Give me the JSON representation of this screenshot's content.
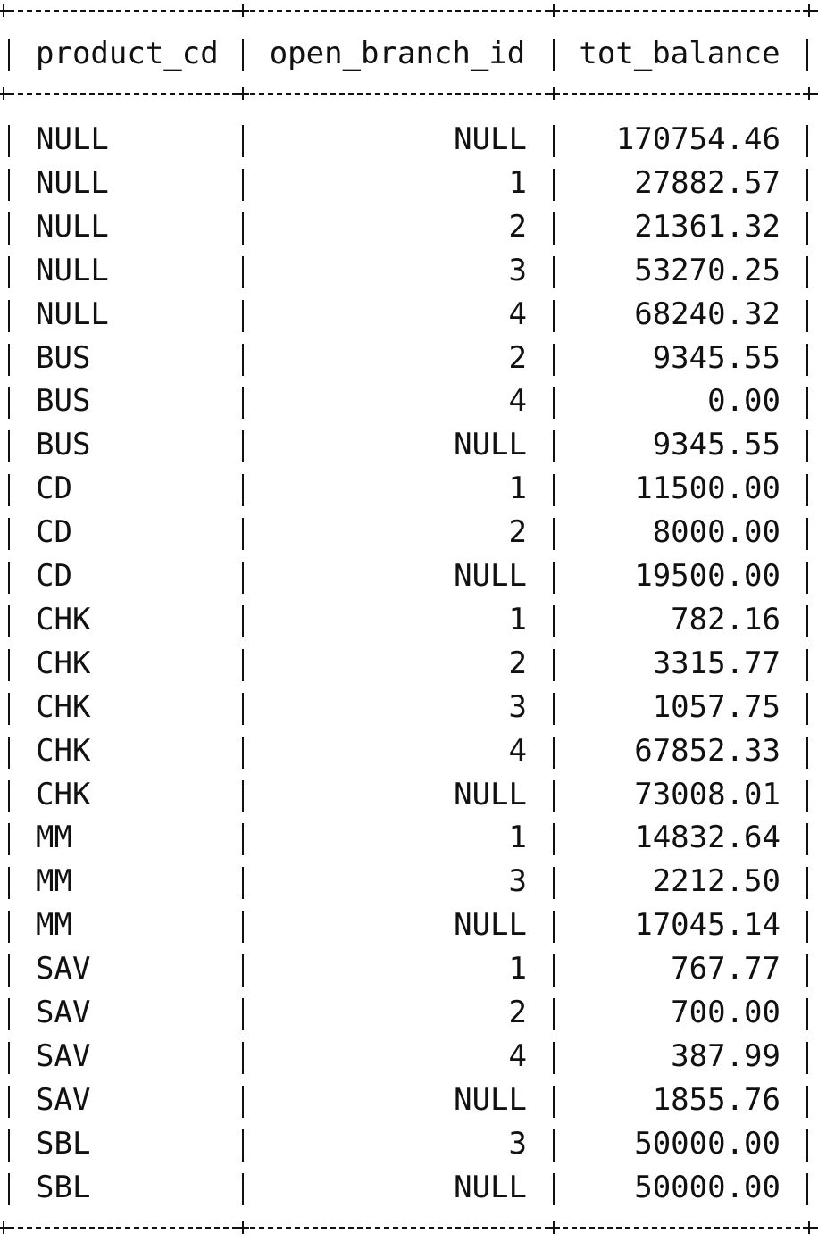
{
  "table": {
    "columns": [
      "product_cd",
      "open_branch_id",
      "tot_balance"
    ],
    "rows": [
      [
        "NULL",
        "NULL",
        "170754.46"
      ],
      [
        "NULL",
        "1",
        "27882.57"
      ],
      [
        "NULL",
        "2",
        "21361.32"
      ],
      [
        "NULL",
        "3",
        "53270.25"
      ],
      [
        "NULL",
        "4",
        "68240.32"
      ],
      [
        "BUS",
        "2",
        "9345.55"
      ],
      [
        "BUS",
        "4",
        "0.00"
      ],
      [
        "BUS",
        "NULL",
        "9345.55"
      ],
      [
        "CD",
        "1",
        "11500.00"
      ],
      [
        "CD",
        "2",
        "8000.00"
      ],
      [
        "CD",
        "NULL",
        "19500.00"
      ],
      [
        "CHK",
        "1",
        "782.16"
      ],
      [
        "CHK",
        "2",
        "3315.77"
      ],
      [
        "CHK",
        "3",
        "1057.75"
      ],
      [
        "CHK",
        "4",
        "67852.33"
      ],
      [
        "CHK",
        "NULL",
        "73008.01"
      ],
      [
        "MM",
        "1",
        "14832.64"
      ],
      [
        "MM",
        "3",
        "2212.50"
      ],
      [
        "MM",
        "NULL",
        "17045.14"
      ],
      [
        "SAV",
        "1",
        "767.77"
      ],
      [
        "SAV",
        "2",
        "700.00"
      ],
      [
        "SAV",
        "4",
        "387.99"
      ],
      [
        "SAV",
        "NULL",
        "1855.76"
      ],
      [
        "SBL",
        "3",
        "50000.00"
      ],
      [
        "SBL",
        "NULL",
        "50000.00"
      ]
    ]
  }
}
